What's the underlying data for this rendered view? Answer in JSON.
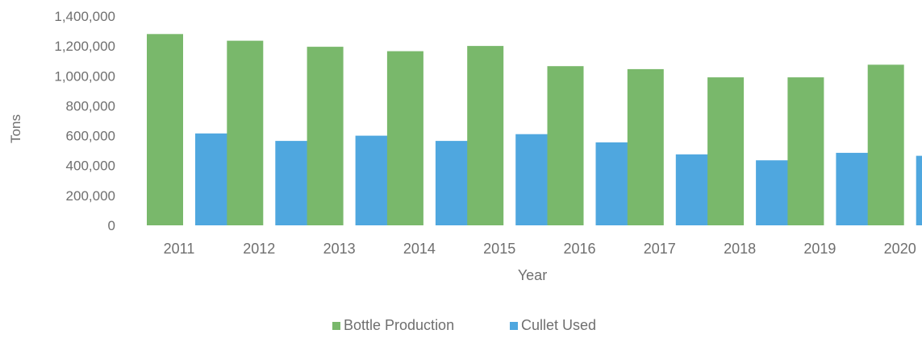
{
  "chart_data": {
    "type": "bar",
    "title": "",
    "xlabel": "Year",
    "ylabel": "Tons",
    "ylim": [
      0,
      1400000
    ],
    "yticks": [
      0,
      200000,
      400000,
      600000,
      800000,
      1000000,
      1200000,
      1400000
    ],
    "ytick_labels": [
      "0",
      "200,000",
      "400,000",
      "600,000",
      "800,000",
      "1,000,000",
      "1,200,000",
      "1,400,000"
    ],
    "grid": false,
    "legend_position": "bottom",
    "categories": [
      "2011",
      "2012",
      "2013",
      "2014",
      "2015",
      "2016",
      "2017",
      "2018",
      "2019",
      "2020"
    ],
    "series": [
      {
        "name": "Bottle Production",
        "color": "#79b86b",
        "values": [
          1280000,
          1235000,
          1195000,
          1165000,
          1200000,
          1065000,
          1045000,
          990000,
          990000,
          1075000
        ]
      },
      {
        "name": "Cullet Used",
        "color": "#4fa7df",
        "values": [
          615000,
          565000,
          600000,
          565000,
          610000,
          555000,
          475000,
          435000,
          485000,
          465000
        ]
      }
    ]
  }
}
